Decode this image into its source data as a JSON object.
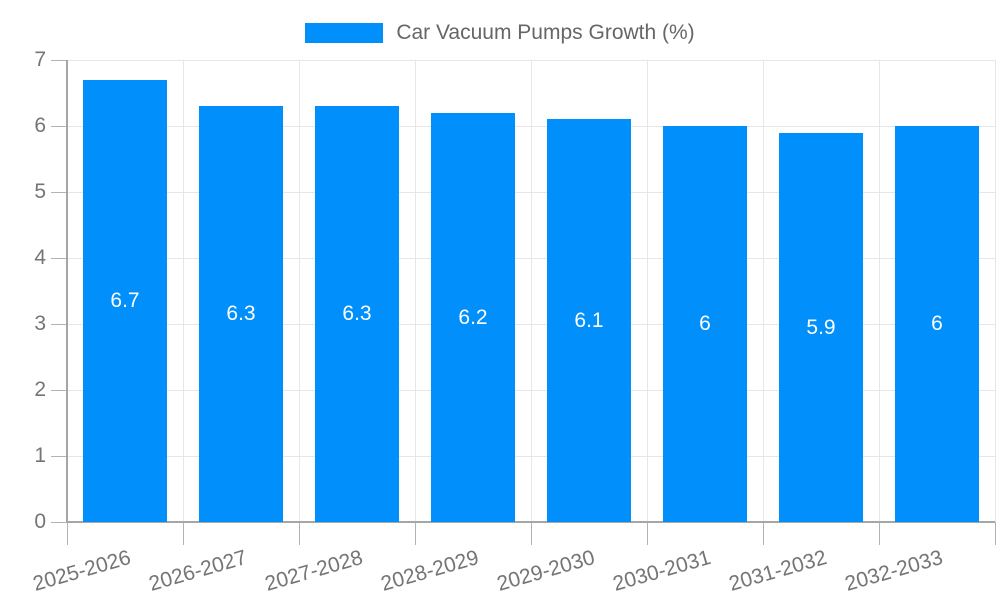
{
  "legend": {
    "label": "Car Vacuum Pumps Growth (%)",
    "swatch_color": "#008ffb"
  },
  "chart_data": {
    "type": "bar",
    "title": "Car Vacuum Pumps Growth (%)",
    "categories": [
      "2025-2026",
      "2026-2027",
      "2027-2028",
      "2028-2029",
      "2029-2030",
      "2030-2031",
      "2031-2032",
      "2032-2033"
    ],
    "values": [
      6.7,
      6.3,
      6.3,
      6.2,
      6.1,
      6,
      5.9,
      6
    ],
    "bar_labels": [
      "6.7",
      "6.3",
      "6.3",
      "6.2",
      "6.1",
      "6",
      "5.9",
      "6"
    ],
    "yticks": [
      "0",
      "1",
      "2",
      "3",
      "4",
      "5",
      "6",
      "7"
    ],
    "ylim": [
      0,
      7
    ],
    "xlabel": "",
    "ylabel": "",
    "grid": true,
    "legend_position": "top",
    "bar_color": "#008ffb",
    "bar_label_color": "#ffffff",
    "axis_label_color": "#757575",
    "gridline_color": "#e7e7e7",
    "axis_line_color": "#a6a6a6"
  }
}
